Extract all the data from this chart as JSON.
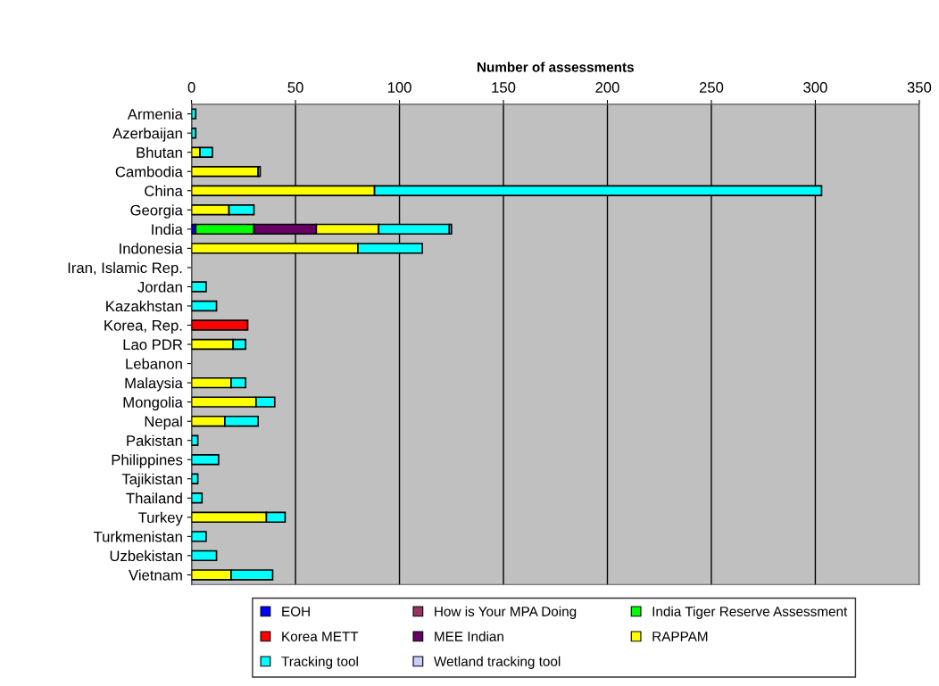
{
  "chart_data": {
    "type": "bar",
    "orientation": "horizontal",
    "stacked": true,
    "xlabel": "Number of assessments",
    "categories": [
      "Armenia",
      "Azerbaijan",
      "Bhutan",
      "Cambodia",
      "China",
      "Georgia",
      "India",
      "Indonesia",
      "Iran, Islamic Rep.",
      "Jordan",
      "Kazakhstan",
      "Korea, Rep.",
      "Lao PDR",
      "Lebanon",
      "Malaysia",
      "Mongolia",
      "Nepal",
      "Pakistan",
      "Philippines",
      "Tajikistan",
      "Thailand",
      "Turkey",
      "Turkmenistan",
      "Uzbekistan",
      "Vietnam"
    ],
    "series": [
      {
        "name": "EOH",
        "color": "#0000ff",
        "values": [
          null,
          null,
          null,
          null,
          null,
          null,
          2,
          null,
          null,
          null,
          null,
          null,
          null,
          null,
          null,
          null,
          null,
          null,
          null,
          null,
          null,
          null,
          null,
          null,
          null
        ]
      },
      {
        "name": "How is Your MPA Doing",
        "color": "#993366",
        "values": [
          null,
          null,
          null,
          null,
          null,
          null,
          null,
          null,
          null,
          null,
          null,
          null,
          null,
          null,
          null,
          null,
          null,
          null,
          null,
          null,
          null,
          null,
          null,
          null,
          null
        ]
      },
      {
        "name": "India Tiger Reserve Assessment",
        "color": "#00ff00",
        "values": [
          null,
          null,
          null,
          null,
          null,
          null,
          28,
          null,
          null,
          null,
          null,
          null,
          null,
          null,
          null,
          null,
          null,
          null,
          null,
          null,
          null,
          null,
          null,
          null,
          null
        ]
      },
      {
        "name": "Korea METT",
        "color": "#ff0000",
        "values": [
          null,
          null,
          null,
          null,
          null,
          null,
          null,
          null,
          null,
          null,
          null,
          27,
          null,
          null,
          null,
          null,
          null,
          null,
          null,
          null,
          null,
          null,
          null,
          null,
          null
        ]
      },
      {
        "name": "MEE Indian",
        "color": "#660066",
        "values": [
          null,
          null,
          null,
          null,
          null,
          null,
          30,
          null,
          null,
          null,
          null,
          null,
          null,
          null,
          null,
          null,
          null,
          null,
          null,
          null,
          null,
          null,
          null,
          null,
          null
        ]
      },
      {
        "name": "RAPPAM",
        "color": "#ffff00",
        "values": [
          null,
          null,
          4,
          32,
          88,
          18,
          30,
          80,
          null,
          null,
          null,
          null,
          20,
          null,
          19,
          31,
          16,
          null,
          null,
          null,
          null,
          36,
          null,
          null,
          19
        ]
      },
      {
        "name": "Tracking tool",
        "color": "#00ffff",
        "values": [
          2,
          2,
          6,
          1,
          215,
          12,
          34,
          31,
          null,
          7,
          12,
          null,
          6,
          null,
          7,
          9,
          16,
          3,
          13,
          3,
          5,
          9,
          7,
          12,
          20
        ]
      },
      {
        "name": "Wetland tracking tool",
        "color": "#ccccff",
        "values": [
          null,
          null,
          null,
          null,
          null,
          null,
          1,
          null,
          null,
          null,
          null,
          null,
          null,
          null,
          null,
          null,
          null,
          null,
          null,
          null,
          null,
          null,
          null,
          null,
          null
        ]
      }
    ],
    "xlim": [
      0,
      350
    ],
    "xticks": [
      0,
      50,
      100,
      150,
      200,
      250,
      300,
      350
    ],
    "grid": "x",
    "legend": "bottom"
  }
}
